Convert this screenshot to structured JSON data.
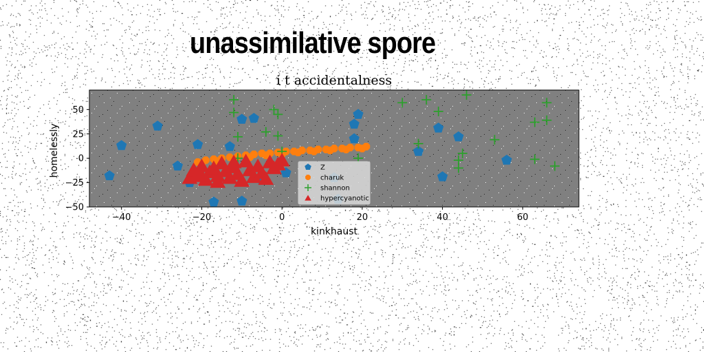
{
  "figure": {
    "suptitle": "unassimilative spore"
  },
  "colors": {
    "page_bg": "#ffffff",
    "axes_bg": "#808080",
    "blue": "#1f77b4",
    "orange": "#ff7f0e",
    "green": "#2ca02c",
    "red": "#d62728"
  },
  "chart_data": {
    "type": "scatter",
    "title": "i t accidentalness",
    "xlabel": "kinkhaust",
    "ylabel": "homelessly",
    "xlim": [
      -48,
      74
    ],
    "ylim": [
      -50,
      70
    ],
    "xticks": [
      -40,
      -20,
      0,
      20,
      40,
      60
    ],
    "yticks": [
      -50,
      -25,
      0,
      25,
      50
    ],
    "xtick_labels": [
      "−40",
      "−20",
      "0",
      "20",
      "40",
      "60"
    ],
    "ytick_labels": [
      "−50",
      "−25",
      "0",
      "25",
      "50"
    ],
    "grid": false,
    "legend_position": "lower-center",
    "series": [
      {
        "name": "Z",
        "marker": "pentagon",
        "color": "#1f77b4",
        "points": [
          [
            -43,
            -18
          ],
          [
            -40,
            13
          ],
          [
            -31,
            33
          ],
          [
            -26,
            -8
          ],
          [
            -23,
            -25
          ],
          [
            -21,
            14
          ],
          [
            -17,
            -45
          ],
          [
            -13,
            12
          ],
          [
            -10,
            40
          ],
          [
            -10,
            -44
          ],
          [
            -7,
            41
          ],
          [
            -5,
            -22
          ],
          [
            1,
            -15
          ],
          [
            13,
            -20
          ],
          [
            14,
            -42
          ],
          [
            18,
            35
          ],
          [
            18,
            20
          ],
          [
            19,
            45
          ],
          [
            34,
            7
          ],
          [
            39,
            31
          ],
          [
            40,
            -19
          ],
          [
            44,
            22
          ],
          [
            56,
            -2
          ]
        ]
      },
      {
        "name": "charuk",
        "marker": "octagon",
        "color": "#ff7f0e",
        "points": [
          [
            -21,
            -4
          ],
          [
            -19,
            -2
          ],
          [
            -17,
            -1
          ],
          [
            -15,
            0
          ],
          [
            -13,
            1
          ],
          [
            -11,
            2
          ],
          [
            -9,
            3
          ],
          [
            -7,
            4
          ],
          [
            -5,
            5
          ],
          [
            -3,
            5
          ],
          [
            -1,
            6
          ],
          [
            1,
            7
          ],
          [
            3,
            7
          ],
          [
            5,
            8
          ],
          [
            7,
            8
          ],
          [
            9,
            9
          ],
          [
            11,
            9
          ],
          [
            13,
            10
          ],
          [
            15,
            10
          ],
          [
            17,
            11
          ],
          [
            19,
            11
          ],
          [
            21,
            12
          ],
          [
            -20,
            -6
          ],
          [
            -16,
            -3
          ],
          [
            -12,
            -1
          ],
          [
            -8,
            1
          ],
          [
            -4,
            3
          ],
          [
            0,
            4
          ],
          [
            4,
            6
          ],
          [
            8,
            7
          ],
          [
            12,
            8
          ],
          [
            16,
            9
          ],
          [
            20,
            10
          ]
        ]
      },
      {
        "name": "shannon",
        "marker": "plus",
        "color": "#2ca02c",
        "points": [
          [
            -12,
            60
          ],
          [
            -12,
            47
          ],
          [
            -11,
            22
          ],
          [
            -11,
            0
          ],
          [
            -4,
            27
          ],
          [
            -2,
            50
          ],
          [
            -1,
            45
          ],
          [
            -1,
            23
          ],
          [
            0,
            7
          ],
          [
            19,
            0
          ],
          [
            30,
            57
          ],
          [
            34,
            15
          ],
          [
            36,
            60
          ],
          [
            39,
            48
          ],
          [
            44,
            -2
          ],
          [
            44,
            -10
          ],
          [
            45,
            5
          ],
          [
            46,
            65
          ],
          [
            53,
            19
          ],
          [
            63,
            -1
          ],
          [
            63,
            37
          ],
          [
            66,
            39
          ],
          [
            66,
            57
          ],
          [
            68,
            -8
          ]
        ]
      },
      {
        "name": "hypercyanotic",
        "marker": "triangle",
        "color": "#d62728",
        "points": [
          [
            -23,
            -20
          ],
          [
            -22,
            -12
          ],
          [
            -21,
            -17
          ],
          [
            -20,
            -8
          ],
          [
            -19,
            -22
          ],
          [
            -18,
            -14
          ],
          [
            -17,
            -10
          ],
          [
            -16,
            -18
          ],
          [
            -16,
            -24
          ],
          [
            -15,
            -5
          ],
          [
            -14,
            -13
          ],
          [
            -13,
            -20
          ],
          [
            -12,
            -9
          ],
          [
            -11,
            -16
          ],
          [
            -10,
            -23
          ],
          [
            -9,
            -3
          ],
          [
            -8,
            -12
          ],
          [
            -7,
            -19
          ],
          [
            -6,
            -8
          ],
          [
            -5,
            -15
          ],
          [
            -4,
            -21
          ],
          [
            -3,
            -4
          ],
          [
            -2,
            -10
          ],
          [
            -1,
            -6
          ],
          [
            0,
            -2
          ],
          [
            -20,
            -18
          ],
          [
            -12,
            -4
          ]
        ]
      }
    ]
  }
}
